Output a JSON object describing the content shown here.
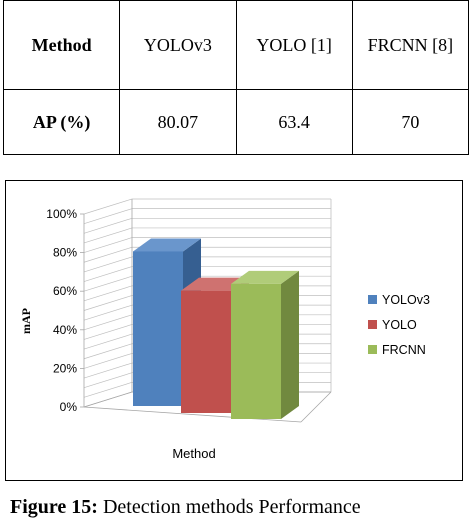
{
  "table": {
    "header": [
      "Method",
      "YOLOv3",
      "YOLO [1]",
      "FRCNN [8]"
    ],
    "row": [
      "AP (%)",
      "80.07",
      "63.4",
      "70"
    ]
  },
  "chart_data": {
    "type": "bar",
    "categories": [
      "YOLOv3",
      "YOLO",
      "FRCNN"
    ],
    "series": [
      {
        "name": "YOLOv3",
        "values": [
          80.07,
          null,
          null
        ]
      },
      {
        "name": "YOLO",
        "values": [
          null,
          63.4,
          null
        ]
      },
      {
        "name": "FRCNN",
        "values": [
          null,
          null,
          70
        ]
      }
    ],
    "values": [
      80.07,
      63.4,
      70
    ],
    "colors": [
      "#4F81BD",
      "#C0504D",
      "#9BBB59"
    ],
    "side_colors": [
      "#365F91",
      "#8C3A38",
      "#71893F"
    ],
    "top_colors": [
      "#6A96CC",
      "#CF7270",
      "#B0CC79"
    ],
    "xlabel": "Method",
    "ylabel": "mAP",
    "ylim": [
      0,
      100
    ],
    "yticks": [
      "0%",
      "20%",
      "40%",
      "60%",
      "80%",
      "100%"
    ],
    "style": "3d-column",
    "grid": true,
    "legend_position": "right"
  },
  "caption": {
    "label": "Figure 15:",
    "text": " Detection methods Performance"
  }
}
